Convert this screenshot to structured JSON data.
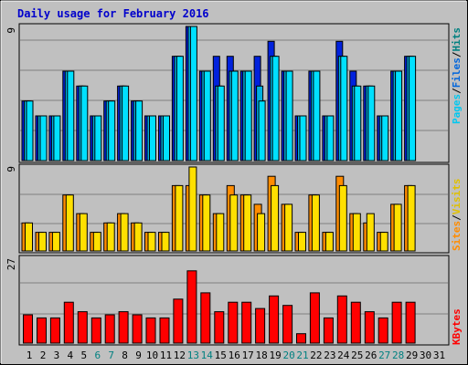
{
  "chart_data": [
    {
      "type": "bar",
      "title": "Daily usage for February 2016",
      "ymax_label": "9",
      "ylim": [
        0,
        9
      ],
      "categories": [
        "1",
        "2",
        "3",
        "4",
        "5",
        "6",
        "7",
        "8",
        "9",
        "10",
        "11",
        "12",
        "13",
        "14",
        "15",
        "16",
        "17",
        "18",
        "19",
        "20",
        "21",
        "22",
        "23",
        "24",
        "25",
        "26",
        "27",
        "28",
        "29",
        "30",
        "31"
      ],
      "weekend_days": [
        "6",
        "7",
        "13",
        "14",
        "20",
        "21",
        "27",
        "28"
      ],
      "ylabel_parts": [
        "Pages",
        "Files",
        "Hits"
      ],
      "series": [
        {
          "name": "Hits",
          "color": "#0022dd",
          "values": [
            4,
            3,
            3,
            6,
            5,
            3,
            4,
            5,
            4,
            3,
            3,
            7,
            9,
            6,
            7,
            7,
            6,
            7,
            8,
            6,
            3,
            6,
            3,
            8,
            6,
            5,
            3,
            6,
            7,
            0,
            0
          ]
        },
        {
          "name": "Files",
          "color": "#00b0e0",
          "values": [
            4,
            3,
            3,
            6,
            5,
            3,
            4,
            5,
            4,
            3,
            3,
            7,
            9,
            6,
            5,
            6,
            6,
            5,
            7,
            6,
            3,
            6,
            3,
            7,
            5,
            5,
            3,
            6,
            7,
            0,
            0
          ]
        },
        {
          "name": "Pages",
          "color": "#00e0ff",
          "values": [
            4,
            3,
            3,
            6,
            5,
            3,
            4,
            5,
            4,
            3,
            3,
            7,
            9,
            6,
            5,
            6,
            6,
            4,
            7,
            6,
            3,
            6,
            3,
            7,
            5,
            5,
            3,
            6,
            7,
            0,
            0
          ]
        }
      ]
    },
    {
      "type": "bar",
      "ymax_label": "9",
      "ylim": [
        0,
        9
      ],
      "categories": [
        "1",
        "2",
        "3",
        "4",
        "5",
        "6",
        "7",
        "8",
        "9",
        "10",
        "11",
        "12",
        "13",
        "14",
        "15",
        "16",
        "17",
        "18",
        "19",
        "20",
        "21",
        "22",
        "23",
        "24",
        "25",
        "26",
        "27",
        "28",
        "29",
        "30",
        "31"
      ],
      "ylabel_parts": [
        "Sites",
        "Visits"
      ],
      "series": [
        {
          "name": "Visits",
          "color": "#ff8c00",
          "values": [
            3,
            2,
            2,
            6,
            4,
            2,
            3,
            4,
            3,
            2,
            2,
            7,
            7,
            6,
            4,
            7,
            6,
            5,
            8,
            5,
            2,
            6,
            2,
            8,
            4,
            3,
            2,
            5,
            7,
            0,
            0
          ]
        },
        {
          "name": "Sites",
          "color": "#ffe000",
          "values": [
            3,
            2,
            2,
            6,
            4,
            2,
            3,
            4,
            3,
            2,
            2,
            7,
            9,
            6,
            4,
            6,
            6,
            4,
            7,
            5,
            2,
            6,
            2,
            7,
            4,
            4,
            2,
            5,
            7,
            0,
            0
          ]
        }
      ]
    },
    {
      "type": "bar",
      "ymax_label": "27",
      "ylim": [
        0,
        27
      ],
      "categories": [
        "1",
        "2",
        "3",
        "4",
        "5",
        "6",
        "7",
        "8",
        "9",
        "10",
        "11",
        "12",
        "13",
        "14",
        "15",
        "16",
        "17",
        "18",
        "19",
        "20",
        "21",
        "22",
        "23",
        "24",
        "25",
        "26",
        "27",
        "28",
        "29",
        "30",
        "31"
      ],
      "ylabel_parts": [
        "KBytes"
      ],
      "series": [
        {
          "name": "KBytes",
          "color": "#ff0000",
          "values": [
            9,
            8,
            8,
            13,
            10,
            8,
            9,
            10,
            9,
            8,
            8,
            14,
            23,
            16,
            10,
            13,
            13,
            11,
            15,
            12,
            3,
            16,
            8,
            15,
            13,
            10,
            8,
            13,
            13,
            0,
            0
          ]
        }
      ]
    }
  ]
}
